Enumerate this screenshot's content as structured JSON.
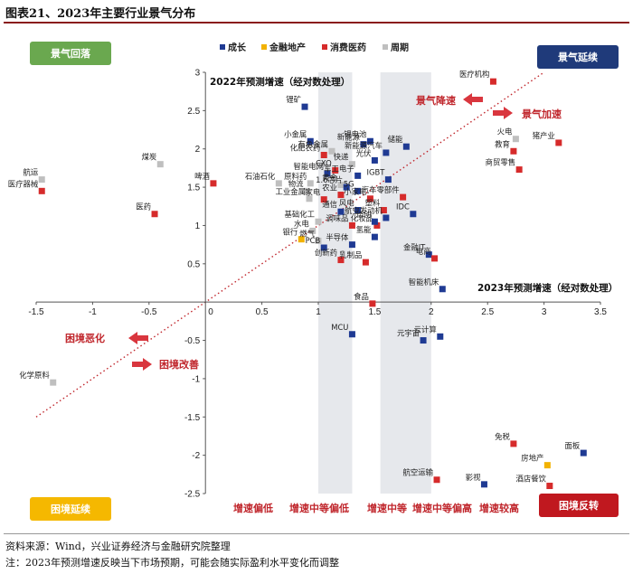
{
  "title": "图表21、2023年主要行业景气分布",
  "source_note": "资料来源：Wind，兴业证券经济与金融研究院整理",
  "footnote": "注：2023年预测增速反映当下市场预期，可能会随实际盈利水平变化而调整",
  "colors": {
    "成长": "#1f3a93",
    "金融地产": "#f2b200",
    "消费医药": "#d62b2b",
    "周期": "#bfbfbf",
    "diagonal": "#c0262c",
    "green_box": "#6aa84f",
    "navy_box": "#1f3a7a",
    "yellow_box": "#f5b800",
    "red_box": "#c0181f"
  },
  "chart_data": {
    "type": "scatter",
    "title": "",
    "xlabel": "2023年预测增速（经对数处理）",
    "ylabel": "2022年预测增速（经对数处理）",
    "xlim": [
      -1.5,
      3.5
    ],
    "ylim": [
      -2.5,
      3
    ],
    "x_ticks": [
      -1.5,
      -1,
      -0.5,
      0,
      0.5,
      1,
      1.5,
      2,
      2.5,
      3,
      3.5
    ],
    "y_ticks": [
      -2.5,
      -2,
      -1.5,
      -1,
      -0.5,
      0,
      0.5,
      1,
      1.5,
      2,
      2.5,
      3
    ],
    "grid": false,
    "legend": [
      "成长",
      "金融地产",
      "消费医药",
      "周期"
    ],
    "legend_position": "top",
    "shaded_bands": [
      [
        1,
        1.3
      ],
      [
        1.55,
        2
      ]
    ],
    "band_labels": [
      "增速偏低",
      "增速中等偏低",
      "增速中等",
      "增速中等偏高",
      "增速较高"
    ],
    "quadrant_labels": {
      "top_left": "景气回落",
      "top_right": "景气延续",
      "bottom_left": "困境延续",
      "bottom_right": "困境反转"
    },
    "annotations": [
      "景气降速",
      "景气加速",
      "困境恶化",
      "困境改善"
    ],
    "points": [
      {
        "name": "航运",
        "cat": "周期",
        "x": -1.45,
        "y": 1.6
      },
      {
        "name": "医疗器械",
        "cat": "消费医药",
        "x": -1.45,
        "y": 1.45
      },
      {
        "name": "煤炭",
        "cat": "周期",
        "x": -0.4,
        "y": 1.8
      },
      {
        "name": "医药",
        "cat": "消费医药",
        "x": -0.45,
        "y": 1.15
      },
      {
        "name": "啤酒",
        "cat": "消费医药",
        "x": 0.07,
        "y": 1.55
      },
      {
        "name": "石油石化",
        "cat": "周期",
        "x": 0.65,
        "y": 1.55
      },
      {
        "name": "锂矿",
        "cat": "成长",
        "x": 0.88,
        "y": 2.55
      },
      {
        "name": "小金属",
        "cat": "成长",
        "x": 0.93,
        "y": 2.1
      },
      {
        "name": "化肥农药",
        "cat": "消费医药",
        "x": 1.05,
        "y": 1.92
      },
      {
        "name": "有色金属",
        "cat": "周期",
        "x": 1.12,
        "y": 1.97
      },
      {
        "name": "CXO",
        "cat": "消费医药",
        "x": 1.15,
        "y": 1.72
      },
      {
        "name": "智能电网",
        "cat": "成长",
        "x": 1.08,
        "y": 1.68
      },
      {
        "name": "原料药",
        "cat": "周期",
        "x": 0.93,
        "y": 1.55
      },
      {
        "name": "物流",
        "cat": "周期",
        "x": 0.9,
        "y": 1.45
      },
      {
        "name": "工业金属",
        "cat": "周期",
        "x": 0.92,
        "y": 1.35
      },
      {
        "name": "农业",
        "cat": "消费医药",
        "x": 1.2,
        "y": 1.4
      },
      {
        "name": "家电",
        "cat": "消费医药",
        "x": 1.05,
        "y": 1.34
      },
      {
        "name": "黄金",
        "cat": "周期",
        "x": 1.2,
        "y": 1.53
      },
      {
        "name": "新能源",
        "cat": "成长",
        "x": 1.4,
        "y": 2.06
      },
      {
        "name": "锂电池",
        "cat": "成长",
        "x": 1.46,
        "y": 2.1
      },
      {
        "name": "储能",
        "cat": "成长",
        "x": 1.78,
        "y": 2.03
      },
      {
        "name": "新能源汽车",
        "cat": "成长",
        "x": 1.6,
        "y": 1.95
      },
      {
        "name": "光伏",
        "cat": "成长",
        "x": 1.5,
        "y": 1.85
      },
      {
        "name": "快递",
        "cat": "周期",
        "x": 1.3,
        "y": 1.8
      },
      {
        "name": "军工电子",
        "cat": "成长",
        "x": 1.35,
        "y": 1.65
      },
      {
        "name": "IGBT",
        "cat": "成长",
        "x": 1.62,
        "y": 1.6
      },
      {
        "name": "1.6芯片",
        "cat": "成长",
        "x": 1.25,
        "y": 1.5
      },
      {
        "name": "5G",
        "cat": "成长",
        "x": 1.35,
        "y": 1.45
      },
      {
        "name": "风电",
        "cat": "成长",
        "x": 1.35,
        "y": 1.2
      },
      {
        "name": "通信",
        "cat": "成长",
        "x": 1.2,
        "y": 1.18
      },
      {
        "name": "汽车零部件",
        "cat": "消费医药",
        "x": 1.75,
        "y": 1.37
      },
      {
        "name": "小家电",
        "cat": "消费医药",
        "x": 1.46,
        "y": 1.35
      },
      {
        "name": "塑料",
        "cat": "消费医药",
        "x": 1.58,
        "y": 1.2
      },
      {
        "name": "IDC",
        "cat": "成长",
        "x": 1.84,
        "y": 1.15
      },
      {
        "name": "航空发动机",
        "cat": "成长",
        "x": 1.6,
        "y": 1.1
      },
      {
        "name": "化妆品",
        "cat": "消费医药",
        "x": 1.52,
        "y": 1.0
      },
      {
        "name": "基础化工",
        "cat": "周期",
        "x": 1.0,
        "y": 1.05
      },
      {
        "name": "调味品",
        "cat": "消费医药",
        "x": 1.3,
        "y": 1.0
      },
      {
        "name": "信创",
        "cat": "成长",
        "x": 1.5,
        "y": 1.05
      },
      {
        "name": "水电",
        "cat": "周期",
        "x": 0.95,
        "y": 0.93
      },
      {
        "name": "银行",
        "cat": "金融地产",
        "x": 0.85,
        "y": 0.82
      },
      {
        "name": "燃气",
        "cat": "周期",
        "x": 1.0,
        "y": 0.8
      },
      {
        "name": "半导体",
        "cat": "成长",
        "x": 1.3,
        "y": 0.75
      },
      {
        "name": "氢能",
        "cat": "成长",
        "x": 1.5,
        "y": 0.85
      },
      {
        "name": "PCB",
        "cat": "成长",
        "x": 1.05,
        "y": 0.71
      },
      {
        "name": "创新药",
        "cat": "消费医药",
        "x": 1.2,
        "y": 0.55
      },
      {
        "name": "乳制品",
        "cat": "消费医药",
        "x": 1.42,
        "y": 0.52
      },
      {
        "name": "金融IT",
        "cat": "成长",
        "x": 1.98,
        "y": 0.62
      },
      {
        "name": "电商",
        "cat": "消费医药",
        "x": 2.03,
        "y": 0.57
      },
      {
        "name": "智能机床",
        "cat": "成长",
        "x": 2.1,
        "y": 0.17
      },
      {
        "name": "食品",
        "cat": "消费医药",
        "x": 1.48,
        "y": -0.02
      },
      {
        "name": "医疗机构",
        "cat": "消费医药",
        "x": 2.55,
        "y": 2.88
      },
      {
        "name": "火电",
        "cat": "周期",
        "x": 2.75,
        "y": 2.13
      },
      {
        "name": "教育",
        "cat": "消费医药",
        "x": 2.73,
        "y": 1.97
      },
      {
        "name": "猪产业",
        "cat": "消费医药",
        "x": 3.13,
        "y": 2.08
      },
      {
        "name": "商贸零售",
        "cat": "消费医药",
        "x": 2.78,
        "y": 1.73
      },
      {
        "name": "MCU",
        "cat": "成长",
        "x": 1.3,
        "y": -0.42
      },
      {
        "name": "元宇宙",
        "cat": "成长",
        "x": 1.93,
        "y": -0.5
      },
      {
        "name": "云计算",
        "cat": "成长",
        "x": 2.08,
        "y": -0.45
      },
      {
        "name": "面板",
        "cat": "成长",
        "x": 3.35,
        "y": -1.97
      },
      {
        "name": "房地产",
        "cat": "金融地产",
        "x": 3.03,
        "y": -2.13
      },
      {
        "name": "免税",
        "cat": "消费医药",
        "x": 2.73,
        "y": -1.85
      },
      {
        "name": "航空运输",
        "cat": "消费医药",
        "x": 2.05,
        "y": -2.32
      },
      {
        "name": "影视",
        "cat": "成长",
        "x": 2.47,
        "y": -2.38
      },
      {
        "name": "酒店餐饮",
        "cat": "消费医药",
        "x": 3.05,
        "y": -2.4
      },
      {
        "name": "化学原料",
        "cat": "周期",
        "x": -1.35,
        "y": -1.05
      }
    ]
  }
}
